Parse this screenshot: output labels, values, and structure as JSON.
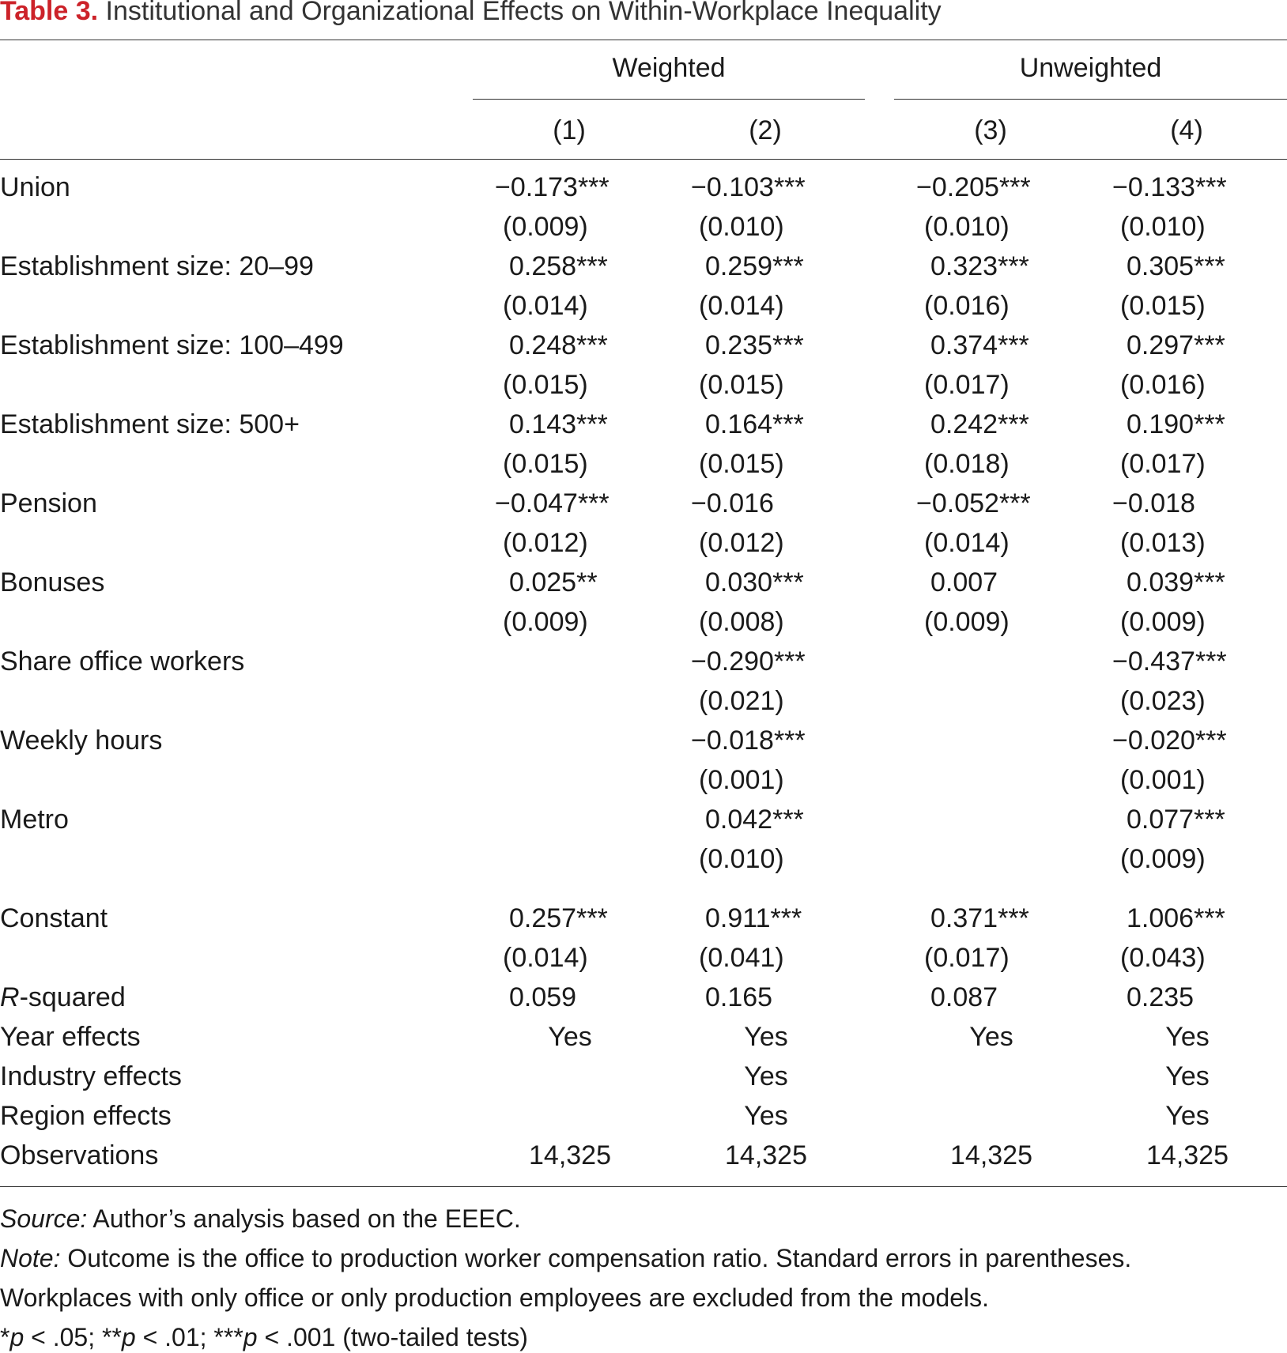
{
  "caption": {
    "label": "Table 3.",
    "title": "Institutional and Organizational Effects on Within-Workplace Inequality"
  },
  "groups": {
    "weighted": "Weighted",
    "unweighted": "Unweighted"
  },
  "columns": [
    "(1)",
    "(2)",
    "(3)",
    "(4)"
  ],
  "rows": [
    {
      "label": "Union",
      "coef": [
        "−0.173***",
        "−0.103***",
        "−0.205***",
        "−0.133***"
      ],
      "se": [
        "(0.009)",
        "(0.010)",
        "(0.010)",
        "(0.010)"
      ]
    },
    {
      "label": "Establishment size: 20–99",
      "coef": [
        "0.258***",
        "0.259***",
        "0.323***",
        "0.305***"
      ],
      "se": [
        "(0.014)",
        "(0.014)",
        "(0.016)",
        "(0.015)"
      ]
    },
    {
      "label": "Establishment size: 100–499",
      "coef": [
        "0.248***",
        "0.235***",
        "0.374***",
        "0.297***"
      ],
      "se": [
        "(0.015)",
        "(0.015)",
        "(0.017)",
        "(0.016)"
      ]
    },
    {
      "label": "Establishment size: 500+",
      "coef": [
        "0.143***",
        "0.164***",
        "0.242***",
        "0.190***"
      ],
      "se": [
        "(0.015)",
        "(0.015)",
        "(0.018)",
        "(0.017)"
      ]
    },
    {
      "label": "Pension",
      "coef": [
        "−0.047***",
        "−0.016",
        "−0.052***",
        "−0.018"
      ],
      "se": [
        "(0.012)",
        "(0.012)",
        "(0.014)",
        "(0.013)"
      ]
    },
    {
      "label": "Bonuses",
      "coef": [
        "0.025**",
        "0.030***",
        "0.007",
        "0.039***"
      ],
      "se": [
        "(0.009)",
        "(0.008)",
        "(0.009)",
        "(0.009)"
      ]
    },
    {
      "label": "Share office workers",
      "coef": [
        "",
        "−0.290***",
        "",
        "−0.437***"
      ],
      "se": [
        "",
        "(0.021)",
        "",
        "(0.023)"
      ]
    },
    {
      "label": "Weekly hours",
      "coef": [
        "",
        "−0.018***",
        "",
        "−0.020***"
      ],
      "se": [
        "",
        "(0.001)",
        "",
        "(0.001)"
      ]
    },
    {
      "label": "Metro",
      "coef": [
        "",
        "0.042***",
        "",
        "0.077***"
      ],
      "se": [
        "",
        "(0.010)",
        "",
        "(0.009)"
      ]
    }
  ],
  "constant": {
    "label": "Constant",
    "coef": [
      "0.257***",
      "0.911***",
      "0.371***",
      "1.006***"
    ],
    "se": [
      "(0.014)",
      "(0.041)",
      "(0.017)",
      "(0.043)"
    ]
  },
  "rsquared": {
    "label_italic": "R",
    "label_rest": "-squared",
    "values": [
      "0.059",
      "0.165",
      "0.087",
      "0.235"
    ]
  },
  "effects": [
    {
      "label": "Year effects",
      "values": [
        "Yes",
        "Yes",
        "Yes",
        "Yes"
      ]
    },
    {
      "label": "Industry effects",
      "values": [
        "",
        "Yes",
        "",
        "Yes"
      ]
    },
    {
      "label": "Region effects",
      "values": [
        "",
        "Yes",
        "",
        "Yes"
      ]
    },
    {
      "label": "Observations",
      "values": [
        "14,325",
        "14,325",
        "14,325",
        "14,325"
      ]
    }
  ],
  "footnotes": {
    "source_label": "Source:",
    "source_text": " Author’s analysis based on the EEEC.",
    "note_label": "Note:",
    "note_text_1": " Outcome is the office to production worker compensation ratio. Standard errors in parentheses.",
    "note_text_2": "Workplaces with only office or only production employees are excluded from the models.",
    "sig": [
      {
        "star": "*",
        "p": "p",
        "rest": " < .05; "
      },
      {
        "star": "**",
        "p": "p",
        "rest": " < .01; "
      },
      {
        "star": "***",
        "p": "p",
        "rest": " < .001 (two-tailed tests)"
      }
    ]
  }
}
